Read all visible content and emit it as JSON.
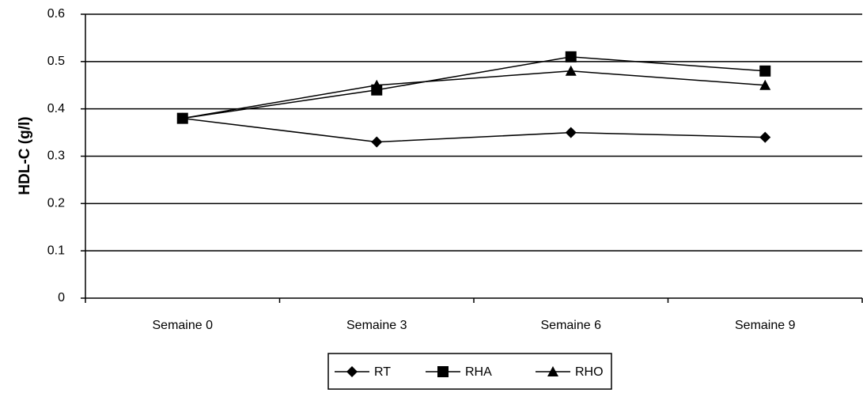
{
  "chart_data": {
    "type": "line",
    "y_label": "HDL-C (g/l)",
    "categories": [
      "Semaine 0",
      "Semaine 3",
      "Semaine 6",
      "Semaine 9"
    ],
    "series": [
      {
        "name": "RT",
        "color": "#000000",
        "marker": "diamond",
        "values": [
          0.38,
          0.33,
          0.35,
          0.34
        ]
      },
      {
        "name": "RHA",
        "color": "#000000",
        "marker": "square",
        "values": [
          0.38,
          0.44,
          0.51,
          0.48
        ]
      },
      {
        "name": "RHO",
        "color": "#000000",
        "marker": "triangle",
        "values": [
          0.38,
          0.45,
          0.48,
          0.45
        ]
      }
    ],
    "ylim": [
      0,
      0.6
    ],
    "yticks": [
      0,
      0.1,
      0.2,
      0.3,
      0.4,
      0.5,
      0.6
    ],
    "grid": true,
    "legend": "bottom"
  }
}
